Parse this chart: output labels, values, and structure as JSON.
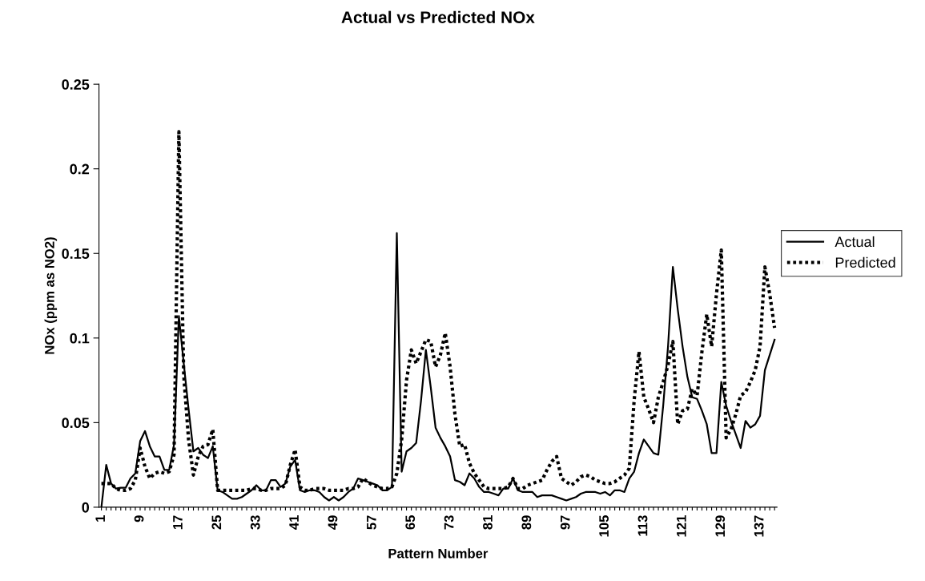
{
  "chart_data": {
    "type": "line",
    "title": "Actual vs Predicted NOx",
    "xlabel": "Pattern Number",
    "ylabel": "NOx (ppm as NO2)",
    "categories": [
      "1",
      null,
      null,
      null,
      null,
      null,
      null,
      null,
      "9",
      null,
      null,
      null,
      null,
      null,
      null,
      null,
      "17",
      null,
      null,
      null,
      null,
      null,
      null,
      null,
      "25",
      null,
      null,
      null,
      null,
      null,
      null,
      null,
      "33",
      null,
      null,
      null,
      null,
      null,
      null,
      null,
      "41",
      null,
      null,
      null,
      null,
      null,
      null,
      null,
      "49",
      null,
      null,
      null,
      null,
      null,
      null,
      null,
      "57",
      null,
      null,
      null,
      null,
      null,
      null,
      null,
      "65",
      null,
      null,
      null,
      null,
      null,
      null,
      null,
      "73",
      null,
      null,
      null,
      null,
      null,
      null,
      null,
      "81",
      null,
      null,
      null,
      null,
      null,
      null,
      null,
      "89",
      null,
      null,
      null,
      null,
      null,
      null,
      null,
      "97",
      null,
      null,
      null,
      null,
      null,
      null,
      null,
      "105",
      null,
      null,
      null,
      null,
      null,
      null,
      null,
      "113",
      null,
      null,
      null,
      null,
      null,
      null,
      null,
      "121",
      null,
      null,
      null,
      null,
      null,
      null,
      null,
      "129",
      null,
      null,
      null,
      null,
      null,
      null,
      null,
      "137",
      null,
      null,
      null
    ],
    "series": [
      {
        "name": "Actual",
        "color": "#000000",
        "line_style": "solid",
        "values": [
          0,
          0.025,
          0.014,
          0.011,
          0.0115,
          0.0115,
          0.017,
          0.02,
          0.039,
          0.045,
          0.036,
          0.03,
          0.03,
          0.022,
          0.022,
          0.037,
          0.113,
          0.085,
          0.058,
          0.033,
          0.035,
          0.031,
          0.029,
          0.036,
          0.01,
          0.009,
          0.007,
          0.005,
          0.005,
          0.006,
          0.008,
          0.01,
          0.013,
          0.01,
          0.01,
          0.016,
          0.016,
          0.012,
          0.014,
          0.024,
          0.028,
          0.01,
          0.009,
          0.01,
          0.01,
          0.009,
          0.006,
          0.004,
          0.006,
          0.004,
          0.006,
          0.009,
          0.011,
          0.017,
          0.016,
          0.015,
          0.014,
          0.013,
          0.01,
          0.01,
          0.012,
          0.162,
          0.021,
          0.033,
          0.035,
          0.038,
          0.063,
          0.093,
          0.071,
          0.047,
          0.041,
          0.036,
          0.03,
          0.016,
          0.015,
          0.013,
          0.02,
          0.017,
          0.012,
          0.009,
          0.009,
          0.008,
          0.007,
          0.011,
          0.011,
          0.017,
          0.01,
          0.009,
          0.009,
          0.009,
          0.006,
          0.007,
          0.007,
          0.007,
          0.006,
          0.005,
          0.004,
          0.005,
          0.006,
          0.008,
          0.009,
          0.009,
          0.009,
          0.008,
          0.009,
          0.007,
          0.01,
          0.01,
          0.009,
          0.017,
          0.021,
          0.032,
          0.04,
          0.036,
          0.032,
          0.031,
          0.06,
          0.095,
          0.142,
          0.117,
          0.095,
          0.077,
          0.065,
          0.064,
          0.057,
          0.049,
          0.032,
          0.032,
          0.074,
          0.06,
          0.051,
          0.043,
          0.035,
          0.051,
          0.047,
          0.049,
          0.054,
          0.081,
          0.09,
          0.099
        ]
      },
      {
        "name": "Predicted",
        "color": "#000000",
        "line_style": "dotted",
        "values": [
          0.014,
          0.014,
          0.014,
          0.011,
          0.01,
          0.01,
          0.011,
          0.016,
          0.035,
          0.024,
          0.017,
          0.02,
          0.021,
          0.02,
          0.021,
          0.031,
          0.222,
          0.078,
          0.04,
          0.019,
          0.03,
          0.036,
          0.037,
          0.046,
          0.01,
          0.01,
          0.01,
          0.01,
          0.01,
          0.01,
          0.01,
          0.011,
          0.011,
          0.01,
          0.01,
          0.011,
          0.011,
          0.011,
          0.013,
          0.025,
          0.034,
          0.012,
          0.01,
          0.01,
          0.011,
          0.011,
          0.011,
          0.01,
          0.01,
          0.01,
          0.01,
          0.011,
          0.011,
          0.012,
          0.017,
          0.015,
          0.013,
          0.012,
          0.011,
          0.011,
          0.012,
          0.02,
          0.04,
          0.075,
          0.093,
          0.085,
          0.092,
          0.099,
          0.098,
          0.083,
          0.09,
          0.103,
          0.083,
          0.055,
          0.036,
          0.037,
          0.026,
          0.02,
          0.016,
          0.012,
          0.011,
          0.011,
          0.011,
          0.011,
          0.012,
          0.017,
          0.011,
          0.011,
          0.013,
          0.014,
          0.015,
          0.016,
          0.022,
          0.027,
          0.03,
          0.017,
          0.015,
          0.013,
          0.015,
          0.018,
          0.019,
          0.018,
          0.016,
          0.015,
          0.014,
          0.014,
          0.015,
          0.017,
          0.019,
          0.023,
          0.063,
          0.092,
          0.065,
          0.058,
          0.05,
          0.065,
          0.074,
          0.084,
          0.098,
          0.049,
          0.057,
          0.058,
          0.07,
          0.066,
          0.092,
          0.114,
          0.095,
          0.126,
          0.152,
          0.041,
          0.046,
          0.055,
          0.066,
          0.068,
          0.074,
          0.081,
          0.095,
          0.142,
          0.126,
          0.106
        ]
      }
    ],
    "ylim": [
      0,
      0.25
    ],
    "yticks": [
      0,
      0.05,
      0.1,
      0.15,
      0.2,
      0.25
    ],
    "grid": false,
    "legend": "right",
    "marker": "none"
  }
}
